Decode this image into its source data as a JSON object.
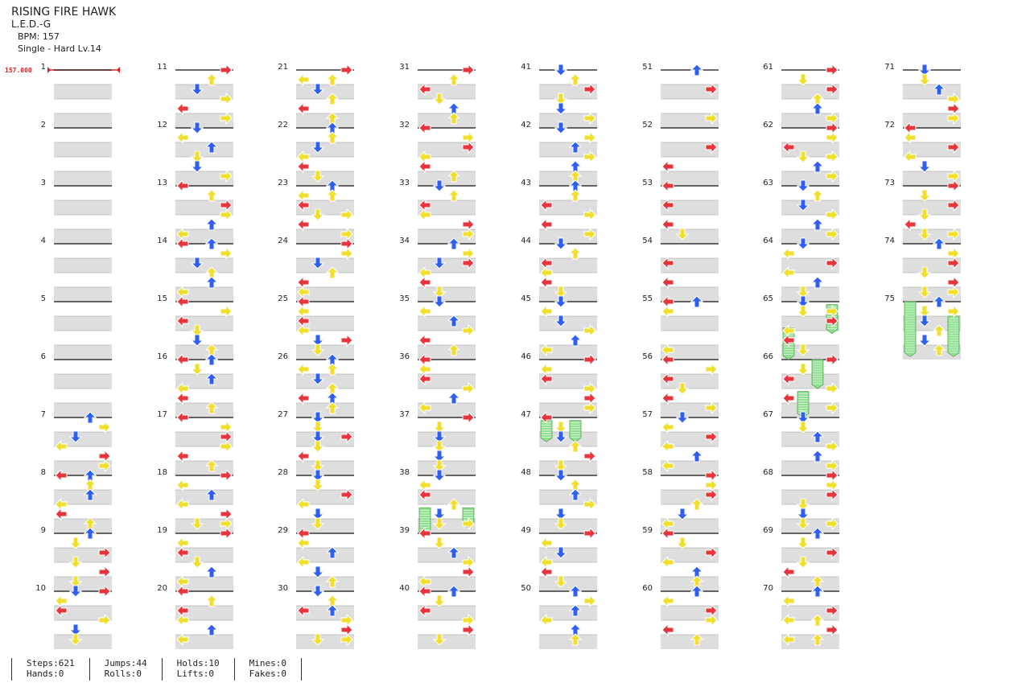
{
  "song": {
    "title": "RISING FIRE HAWK",
    "artist": "L.E.D.-G",
    "bpm_text": "BPM: 157",
    "chart_text": "Single - Hard  Lv.14"
  },
  "bpm_marker": "157.000",
  "columns": [
    {
      "start_measure": 1,
      "count": 10
    },
    {
      "start_measure": 11,
      "count": 10
    },
    {
      "start_measure": 21,
      "count": 10
    },
    {
      "start_measure": 31,
      "count": 10
    },
    {
      "start_measure": 41,
      "count": 10
    },
    {
      "start_measure": 51,
      "count": 10
    },
    {
      "start_measure": 61,
      "count": 10
    },
    {
      "start_measure": 71,
      "count": 5
    }
  ],
  "colors": {
    "left": "#e8343c",
    "down": "#2f5ff0",
    "up": "#2f5ff0",
    "right": "#e8343c",
    "yellow": "#f0e02c",
    "hold": "#8fe08f",
    "bpm": "#dd2222",
    "band": "#dedede"
  },
  "stats": {
    "steps": "Steps:621",
    "hands": "Hands:0",
    "jumps": "Jumps:44",
    "rolls": "Rolls:0",
    "holds": "Holds:10",
    "lifts": "Lifts:0",
    "mines": "Mines:0",
    "fakes": "Fakes:0"
  }
}
